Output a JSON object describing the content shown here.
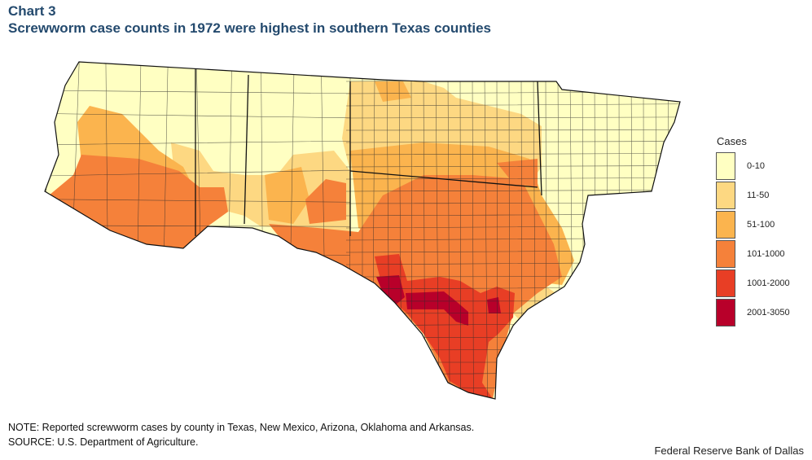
{
  "header": {
    "label": "Chart 3",
    "title": "Screwworm case counts in 1972 were highest in southern Texas counties"
  },
  "legend": {
    "title": "Cases",
    "items": [
      {
        "label": "0-10",
        "color": "#ffffc2"
      },
      {
        "label": "11-50",
        "color": "#fdd882"
      },
      {
        "label": "51-100",
        "color": "#fbb44e"
      },
      {
        "label": "101-1000",
        "color": "#f5813a"
      },
      {
        "label": "1001-2000",
        "color": "#e83e25"
      },
      {
        "label": "2001-3050",
        "color": "#b8002a"
      }
    ]
  },
  "footer": {
    "note": "NOTE: Reported screwworm cases by county in Texas, New Mexico, Arizona, Oklahoma and Arkansas.",
    "source": "SOURCE: U.S. Department of Agriculture.",
    "credit": "Federal Reserve Bank of Dallas"
  }
}
